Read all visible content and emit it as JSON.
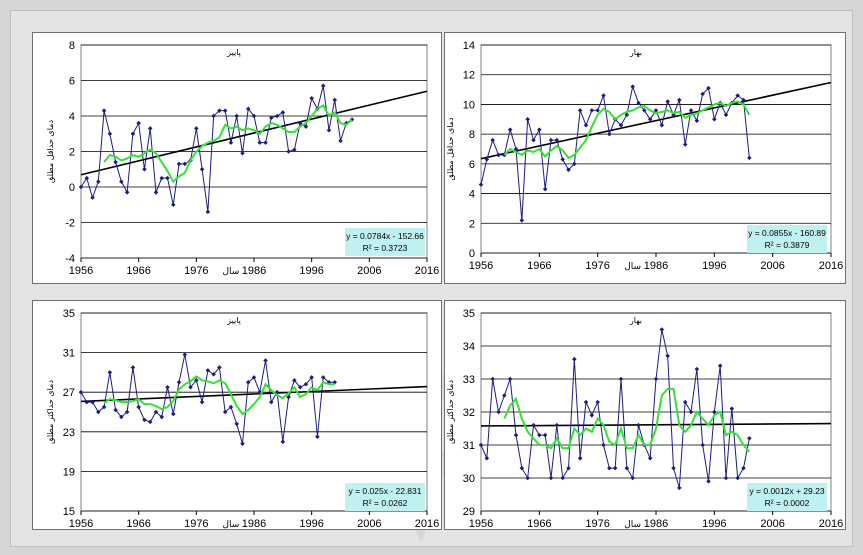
{
  "colors": {
    "observed": "#1c1c80",
    "moving_average": "#33e233",
    "trend": "#000000",
    "equation_box": "#bff1f1"
  },
  "chart_data": [
    {
      "type": "line",
      "title": "پاییز",
      "xlabel": "سال",
      "ylabel": "دمای حداقل مطلق",
      "xlim": [
        1956,
        2016
      ],
      "ylim": [
        -4,
        8
      ],
      "x_ticks": [
        1956,
        1966,
        1976,
        1986,
        1996,
        2006,
        2016
      ],
      "y_ticks": [
        -4,
        -2,
        0,
        2,
        4,
        6,
        8
      ],
      "x_tick_labels": [
        "1956",
        "1966",
        "1976",
        "1986",
        "1996",
        "2006",
        "2016"
      ],
      "y_tick_labels": [
        "-4",
        "-2",
        "0",
        "2",
        "4",
        "6",
        "8"
      ],
      "grid": true,
      "equation": "y = 0.0784x - 152.66",
      "r_squared": "R² = 0.3723",
      "trend": {
        "slope": 0.0784,
        "intercept": -152.66
      },
      "x_start": 1956,
      "series": [
        {
          "role": "observed",
          "values": [
            0.0,
            0.5,
            -0.6,
            0.3,
            4.3,
            3.0,
            1.4,
            0.3,
            -0.3,
            3.0,
            3.6,
            1.0,
            3.3,
            -0.3,
            0.5,
            0.5,
            -1.0,
            1.3,
            1.3,
            1.5,
            3.3,
            1.0,
            -1.4,
            4.0,
            4.3,
            4.3,
            2.5,
            4.0,
            1.9,
            4.4,
            4.0,
            2.5,
            2.5,
            3.9,
            4.0,
            4.2,
            2.0,
            2.1,
            3.6,
            3.4,
            5.0,
            4.4,
            5.7,
            3.2,
            4.9,
            2.6,
            3.6,
            3.8
          ]
        },
        {
          "role": "moving_average",
          "values": [
            null,
            null,
            null,
            null,
            1.4,
            1.8,
            1.7,
            1.5,
            1.6,
            1.8,
            1.7,
            1.9,
            2.1,
            1.9,
            1.4,
            0.9,
            0.3,
            0.6,
            0.8,
            1.5,
            2.0,
            2.3,
            2.5,
            2.6,
            2.8,
            3.5,
            3.3,
            3.4,
            3.2,
            3.3,
            3.2,
            3.0,
            3.4,
            3.6,
            3.5,
            3.3,
            3.1,
            3.1,
            3.4,
            3.6,
            4.0,
            4.4,
            4.6,
            4.0,
            4.2,
            3.6,
            3.5,
            3.8
          ]
        }
      ]
    },
    {
      "type": "line",
      "title": "بهار",
      "xlabel": "سال",
      "ylabel": "دمای حداقل مطلق",
      "xlim": [
        1956,
        2016
      ],
      "ylim": [
        0,
        14
      ],
      "x_ticks": [
        1956,
        1966,
        1976,
        1986,
        1996,
        2006,
        2016
      ],
      "y_ticks": [
        0,
        2,
        4,
        6,
        8,
        10,
        12,
        14
      ],
      "x_tick_labels": [
        "1956",
        "1966",
        "1976",
        "1986",
        "1996",
        "2006",
        "2016"
      ],
      "y_tick_labels": [
        "0",
        "2",
        "4",
        "6",
        "8",
        "10",
        "12",
        "14"
      ],
      "grid": true,
      "equation": "y = 0.0855x - 160.89",
      "r_squared": "R² = 0.3879",
      "trend": {
        "slope": 0.0855,
        "intercept": -160.89
      },
      "x_start": 1956,
      "series": [
        {
          "role": "observed",
          "values": [
            4.6,
            6.3,
            7.6,
            6.6,
            6.6,
            8.3,
            7.0,
            2.2,
            9.0,
            7.6,
            8.3,
            4.3,
            7.6,
            7.6,
            6.3,
            5.6,
            6.0,
            9.6,
            8.6,
            9.6,
            9.6,
            10.6,
            8.0,
            9.0,
            8.6,
            9.3,
            11.2,
            10.1,
            9.6,
            9.0,
            9.6,
            8.6,
            10.2,
            9.3,
            10.3,
            7.3,
            9.6,
            8.9,
            10.7,
            11.1,
            9.0,
            10.1,
            9.3,
            10.1,
            10.6,
            10.3,
            6.4
          ]
        },
        {
          "role": "moving_average",
          "values": [
            null,
            null,
            null,
            null,
            6.6,
            7.0,
            6.8,
            6.6,
            6.9,
            6.8,
            7.0,
            6.5,
            6.9,
            7.2,
            6.9,
            6.4,
            6.6,
            7.1,
            7.6,
            8.5,
            9.3,
            9.7,
            9.5,
            9.0,
            9.3,
            9.5,
            9.6,
            9.8,
            9.9,
            9.6,
            9.4,
            9.5,
            9.6,
            9.4,
            9.5,
            9.1,
            9.3,
            9.4,
            9.6,
            9.8,
            10.0,
            10.1,
            9.9,
            10.1,
            10.2,
            10.0,
            9.3
          ]
        }
      ]
    },
    {
      "type": "line",
      "title": "پاییز",
      "xlabel": "سال",
      "ylabel": "دمای حداکثر مطلق",
      "xlim": [
        1956,
        2016
      ],
      "ylim": [
        15,
        35
      ],
      "x_ticks": [
        1956,
        1966,
        1976,
        1986,
        1996,
        2006,
        2016
      ],
      "y_ticks": [
        15,
        19,
        23,
        27,
        31,
        35
      ],
      "x_tick_labels": [
        "1956",
        "1966",
        "1976",
        "1986",
        "1996",
        "2006",
        "2016"
      ],
      "y_tick_labels": [
        "15",
        "19",
        "23",
        "27",
        "31",
        "35"
      ],
      "grid": true,
      "equation": "y = 0.025x - 22.831",
      "r_squared": "R² = 0.0262",
      "trend": {
        "slope": 0.025,
        "intercept": -22.831
      },
      "x_start": 1956,
      "series": [
        {
          "role": "observed",
          "values": [
            27.0,
            26.0,
            26.0,
            25.0,
            25.5,
            29.0,
            25.2,
            24.5,
            25.0,
            29.5,
            25.5,
            24.2,
            24.0,
            25.0,
            24.5,
            27.5,
            24.8,
            28.0,
            30.8,
            27.5,
            28.2,
            26.0,
            29.2,
            28.8,
            29.5,
            25.0,
            25.5,
            23.8,
            21.8,
            28.0,
            28.5,
            27.0,
            30.2,
            26.0,
            27.0,
            22.0,
            26.5,
            28.2,
            27.5,
            27.8,
            28.5,
            22.5,
            28.5,
            28.0,
            28.0
          ]
        },
        {
          "role": "moving_average",
          "values": [
            null,
            null,
            null,
            null,
            25.9,
            26.3,
            26.2,
            26.0,
            26.0,
            26.1,
            26.3,
            25.8,
            25.8,
            25.6,
            25.3,
            25.5,
            26.1,
            27.3,
            27.8,
            28.1,
            28.6,
            28.2,
            28.1,
            27.9,
            28.2,
            27.9,
            26.8,
            25.6,
            24.8,
            25.2,
            25.8,
            26.5,
            27.8,
            27.2,
            26.7,
            26.4,
            26.9,
            27.5,
            26.5,
            26.8,
            27.5,
            27.2,
            28.0,
            27.8,
            27.8
          ]
        }
      ]
    },
    {
      "type": "line",
      "title": "بهار",
      "xlabel": "سال",
      "ylabel": "دمای حداکثر مطلق",
      "xlim": [
        1956,
        2016
      ],
      "ylim": [
        29,
        35
      ],
      "x_ticks": [
        1956,
        1966,
        1976,
        1986,
        1996,
        2006,
        2016
      ],
      "y_ticks": [
        29,
        30,
        31,
        32,
        33,
        34,
        35
      ],
      "x_tick_labels": [
        "1956",
        "1966",
        "1976",
        "1986",
        "1996",
        "2006",
        "2016"
      ],
      "y_tick_labels": [
        "29",
        "30",
        "31",
        "32",
        "33",
        "34",
        "35"
      ],
      "grid": true,
      "equation": "y = 0.0012x + 29.23",
      "r_squared": "R² = 0.0002",
      "trend": {
        "slope": 0.0012,
        "intercept": 29.23
      },
      "x_start": 1956,
      "series": [
        {
          "role": "observed",
          "values": [
            31.0,
            30.6,
            33.0,
            32.0,
            32.5,
            33.0,
            31.3,
            30.3,
            30.0,
            31.6,
            31.3,
            31.3,
            30.0,
            31.6,
            30.0,
            30.3,
            33.6,
            30.6,
            32.3,
            31.9,
            32.3,
            31.0,
            30.3,
            30.3,
            33.0,
            30.3,
            30.0,
            31.6,
            31.0,
            30.6,
            33.0,
            34.5,
            33.7,
            30.3,
            29.7,
            32.3,
            32.0,
            33.3,
            31.0,
            29.9,
            32.0,
            33.4,
            30.0,
            32.1,
            30.0,
            30.3,
            31.2
          ]
        },
        {
          "role": "moving_average",
          "values": [
            null,
            null,
            null,
            null,
            31.8,
            32.2,
            32.4,
            31.8,
            31.4,
            31.2,
            31.0,
            31.0,
            30.9,
            31.2,
            30.9,
            30.9,
            31.5,
            31.3,
            31.5,
            31.4,
            31.8,
            31.6,
            31.1,
            31.0,
            31.5,
            30.9,
            30.9,
            31.3,
            31.0,
            31.0,
            31.5,
            32.5,
            32.7,
            32.7,
            31.6,
            31.4,
            31.6,
            32.0,
            31.8,
            31.6,
            31.9,
            32.0,
            31.3,
            31.4,
            31.3,
            31.0,
            30.8
          ]
        }
      ]
    }
  ]
}
